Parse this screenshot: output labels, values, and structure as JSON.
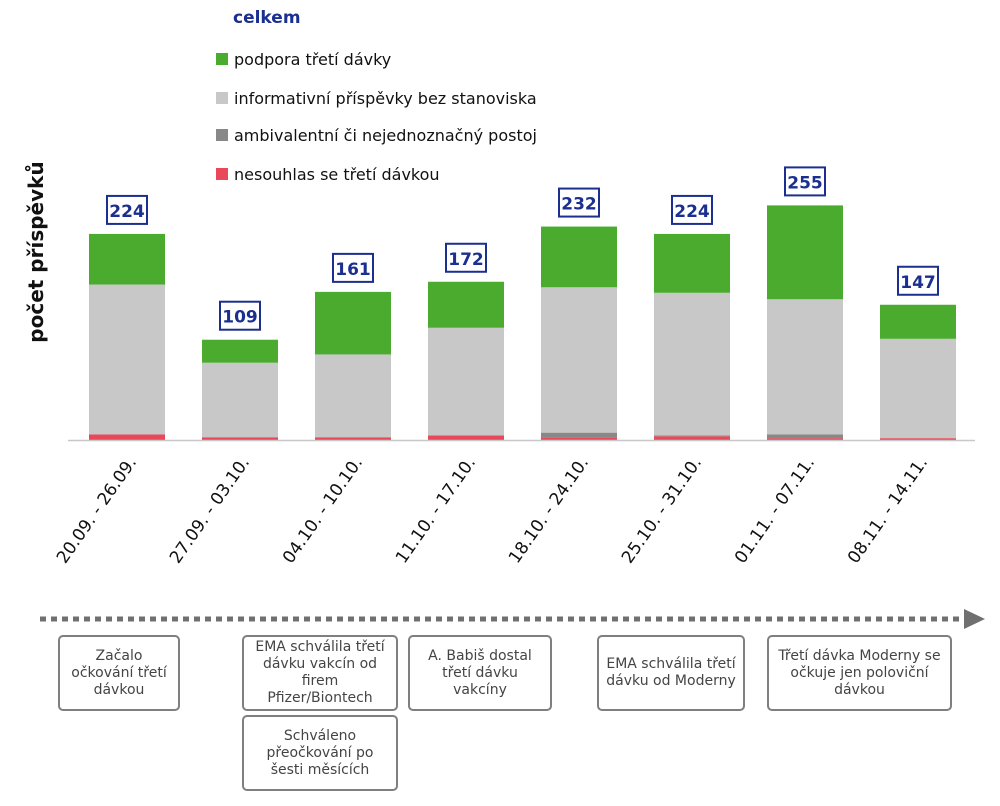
{
  "chart_data": {
    "type": "bar",
    "stacked": true,
    "ylabel": "počet příspěvků",
    "categories": [
      "20.09. - 26.09.",
      "27.09. - 03.10.",
      "04.10. - 10.10.",
      "11.10. - 17.10.",
      "18.10. - 24.10.",
      "25.10. - 31.10.",
      "01.11. - 07.11.",
      "08.11. - 14.11."
    ],
    "totals": [
      224,
      109,
      161,
      172,
      232,
      224,
      255,
      147
    ],
    "totals_label": "celkem",
    "series": [
      {
        "name": "nesouhlas se třetí dávkou",
        "color": "#e8485a",
        "values": [
          6,
          3,
          3,
          5,
          3,
          4,
          2,
          2
        ]
      },
      {
        "name": "ambivalentní či nejednoznačný postoj",
        "color": "#888888",
        "values": [
          0,
          0,
          0,
          0,
          5,
          1,
          4,
          0
        ]
      },
      {
        "name": "informativní příspěvky bez stanoviska",
        "color": "#c8c8c8",
        "values": [
          163,
          81,
          90,
          117,
          158,
          155,
          147,
          108
        ]
      },
      {
        "name": "podpora třetí dávky",
        "color": "#4aab2e",
        "values": [
          55,
          25,
          68,
          50,
          66,
          64,
          102,
          37
        ]
      }
    ],
    "legend_position": "top",
    "grid": false
  },
  "legend": {
    "title": "celkem",
    "title_color": "#1a2f8f",
    "items": [
      {
        "label": "podpora třetí dávky",
        "color": "#4aab2e"
      },
      {
        "label": "informativní příspěvky bez stanoviska",
        "color": "#c8c8c8"
      },
      {
        "label": "ambivalentní či nejednoznačný postoj",
        "color": "#888888"
      },
      {
        "label": "nesouhlas se třetí dávkou",
        "color": "#e8485a"
      }
    ]
  },
  "timeline": {
    "events": [
      "Začalo očkování třetí dávkou",
      "EMA schválila třetí dávku vakcín od firem Pfizer/Biontech",
      "Schváleno přeočkování po šesti měsících",
      "A. Babiš dostal třetí dávku vakcíny",
      "EMA schválila třetí dávku od Moderny",
      "Třetí dávka Moderny se očkuje jen poloviční dávkou"
    ]
  }
}
